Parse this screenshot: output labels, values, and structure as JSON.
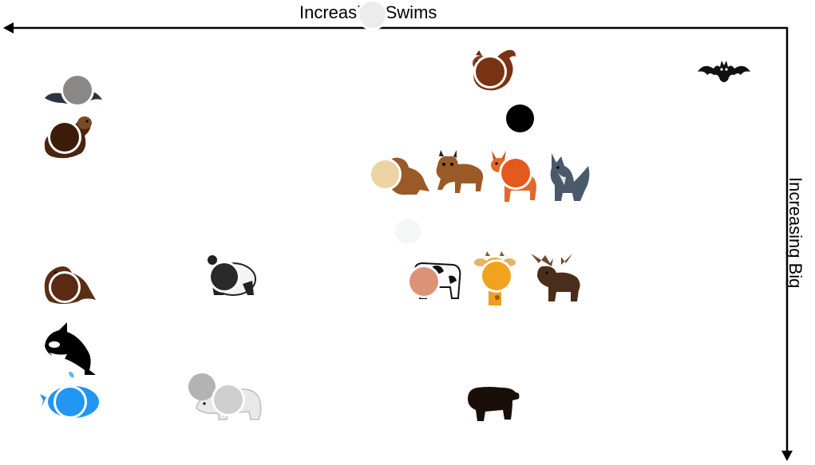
{
  "axes": {
    "x_label": "Increasing Swims",
    "y_label": "Increasing Big",
    "x_direction": "right-to-left",
    "y_direction": "top-to-bottom"
  },
  "animals": [
    {
      "id": "bat",
      "name": "bat",
      "icon": "bat-icon",
      "color": "#111111"
    },
    {
      "id": "squirrel",
      "name": "squirrel",
      "icon": "squirrel-icon",
      "color": "#6b2a12"
    },
    {
      "id": "fox",
      "name": "fox",
      "icon": "fox-icon",
      "color": "#e2541f"
    },
    {
      "id": "lynx",
      "name": "lynx",
      "icon": "lynx-icon",
      "color": "#9a5a28"
    },
    {
      "id": "deer",
      "name": "deer",
      "icon": "deer-icon",
      "color": "#e06a2a"
    },
    {
      "id": "wolf",
      "name": "wolf",
      "icon": "wolf-icon",
      "color": "#4a5a6a"
    },
    {
      "id": "cow",
      "name": "cow",
      "icon": "cow-icon",
      "color": "#111111"
    },
    {
      "id": "giraffe",
      "name": "giraffe",
      "icon": "giraffe-icon",
      "color": "#f0a020"
    },
    {
      "id": "moose",
      "name": "moose",
      "icon": "moose-icon",
      "color": "#4a2e1c"
    },
    {
      "id": "bear",
      "name": "bear",
      "icon": "bear-icon",
      "color": "#1a0f08"
    },
    {
      "id": "panda",
      "name": "panda",
      "icon": "panda-icon",
      "color": "#222222"
    },
    {
      "id": "polar-bear",
      "name": "polar bear",
      "icon": "polar-bear-icon",
      "color": "#e8e8e8"
    },
    {
      "id": "beaver",
      "name": "beaver",
      "icon": "beaver-icon",
      "color": "#4a2410"
    },
    {
      "id": "otter",
      "name": "otter",
      "icon": "otter-icon",
      "color": "#5a2e14"
    },
    {
      "id": "walrus",
      "name": "walrus",
      "icon": "walrus-icon",
      "color": "#5a2e14"
    },
    {
      "id": "killer-whale",
      "name": "killer whale",
      "icon": "killer-whale-icon",
      "color": "#000000"
    },
    {
      "id": "blue-whale",
      "name": "blue whale",
      "icon": "blue-whale-icon",
      "color": "#2196f3"
    },
    {
      "id": "dolphin",
      "name": "dolphin",
      "icon": "dolphin-icon",
      "color": "#8a8a8a"
    }
  ],
  "markers": [
    {
      "id": "dolphin-dot",
      "color": "#8a8886",
      "ring": true
    },
    {
      "id": "otter-dot",
      "color": "#3d1c0c",
      "ring": true
    },
    {
      "id": "walrus-dot",
      "color": "#5a2a14",
      "ring": true
    },
    {
      "id": "panda-dot",
      "color": "#2a2a2a",
      "ring": true
    },
    {
      "id": "blue-whale-dot",
      "color": "#2196f3",
      "ring": true
    },
    {
      "id": "polar-bear-dot-1",
      "color": "#b3b3b3",
      "ring": false
    },
    {
      "id": "polar-bear-dot-2",
      "color": "#cfcfcf",
      "ring": true
    },
    {
      "id": "squirrel-dot",
      "color": "#7a3312",
      "ring": true
    },
    {
      "id": "black-dot",
      "color": "#000000",
      "ring": false
    },
    {
      "id": "beige-dot",
      "color": "#ecd3a3",
      "ring": true
    },
    {
      "id": "deer-dot",
      "color": "#e45a1c",
      "ring": true
    },
    {
      "id": "pale-dot",
      "color": "#f3f7f5",
      "ring": false
    },
    {
      "id": "cow-dot",
      "color": "#dd9276",
      "ring": true
    },
    {
      "id": "giraffe-dot",
      "color": "#f2a31e",
      "ring": true
    },
    {
      "id": "axis-label-dot",
      "color": "#ececec",
      "ring": true
    }
  ]
}
